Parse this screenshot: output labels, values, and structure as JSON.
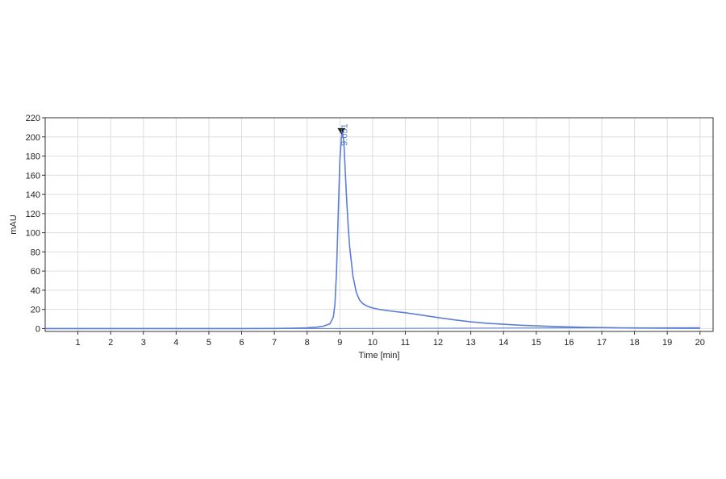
{
  "chart_data": {
    "type": "line",
    "xlabel": "Time [min]",
    "ylabel": "mAU",
    "xlim": [
      0,
      20.4
    ],
    "ylim": [
      -3,
      220
    ],
    "x_ticks": [
      1,
      2,
      3,
      4,
      5,
      6,
      7,
      8,
      9,
      10,
      11,
      12,
      13,
      14,
      15,
      16,
      17,
      18,
      19,
      20
    ],
    "y_ticks": [
      0,
      20,
      40,
      60,
      80,
      100,
      120,
      140,
      160,
      180,
      200,
      220
    ],
    "grid": true,
    "colors": {
      "trace": "#5b7fd6",
      "grid": "#dddddd",
      "axis": "#333333",
      "marker": "#222222"
    },
    "series": [
      {
        "x": [
          0,
          1,
          2,
          3,
          4,
          5,
          6,
          7,
          7.5,
          8,
          8.3,
          8.5,
          8.7,
          8.8,
          8.85,
          8.9,
          8.95,
          9.0,
          9.05,
          9.08,
          9.12,
          9.15,
          9.2,
          9.25,
          9.3,
          9.4,
          9.5,
          9.6,
          9.7,
          9.8,
          9.9,
          10.0,
          10.2,
          10.5,
          11.0,
          11.5,
          12.0,
          12.5,
          13.0,
          13.5,
          14.0,
          14.5,
          15.0,
          15.5,
          16.0,
          16.5,
          17.0,
          17.5,
          18.0,
          18.5,
          19.0,
          19.5,
          20.0
        ],
        "y": [
          0,
          0,
          0,
          0,
          0,
          0,
          0,
          0.1,
          0.3,
          0.8,
          1.5,
          2.5,
          5,
          12,
          25,
          60,
          120,
          175,
          200,
          205,
          195,
          175,
          140,
          110,
          85,
          55,
          38,
          30,
          26,
          24,
          22.5,
          21.5,
          20,
          18.5,
          16.5,
          14,
          11.5,
          9,
          7,
          5.5,
          4.5,
          3.5,
          2.8,
          2.2,
          1.7,
          1.3,
          1.0,
          0.8,
          0.6,
          0.5,
          0.4,
          0.3,
          0.3
        ]
      }
    ],
    "baseline": {
      "x": [
        0,
        8.7,
        20
      ],
      "y": [
        0,
        0,
        1
      ]
    },
    "annotations": [
      {
        "text": "9.051",
        "x": 9.051,
        "y": 205
      }
    ]
  }
}
